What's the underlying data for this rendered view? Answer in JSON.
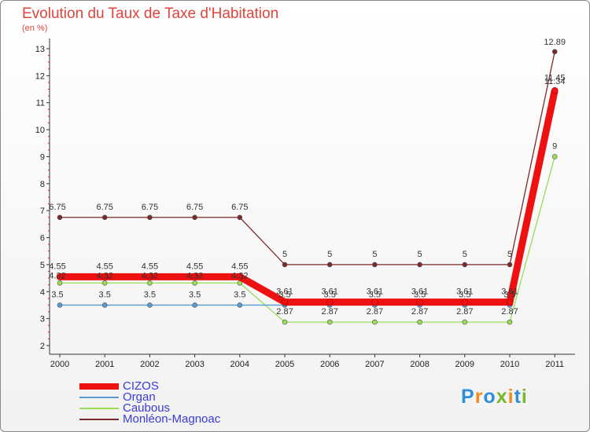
{
  "chart_data": {
    "type": "line",
    "title": "Evolution du Taux de Taxe d'Habitation",
    "subtitle": "(en %)",
    "categories": [
      "2000",
      "2001",
      "2002",
      "2003",
      "2004",
      "2005",
      "2006",
      "2007",
      "2008",
      "2009",
      "2010",
      "2011"
    ],
    "ylim": [
      2,
      13
    ],
    "y_ticks": [
      "2",
      "3",
      "4",
      "5",
      "6",
      "7",
      "8",
      "9",
      "10",
      "11",
      "12",
      "13"
    ],
    "grid": false,
    "legend_position": "bottom-left",
    "series": [
      {
        "name": "CIZOS",
        "color": "#ee1111",
        "values": [
          4.55,
          4.55,
          4.55,
          4.55,
          4.55,
          3.61,
          3.61,
          3.61,
          3.61,
          3.61,
          3.61,
          11.45
        ],
        "labels": [
          "4.55",
          "4.55",
          "4.55",
          "4.55",
          "4.55",
          "3.61",
          "3.61",
          "3.61",
          "3.61",
          "3.61",
          "3.61",
          "11.45"
        ]
      },
      {
        "name": "Organ",
        "color": "#5a9ad2",
        "values": [
          3.5,
          3.5,
          3.5,
          3.5,
          3.5,
          3.5,
          3.5,
          3.5,
          3.5,
          3.5,
          3.5,
          11.34
        ],
        "labels": [
          "3.5",
          "3.5",
          "3.5",
          "3.5",
          "3.5",
          "3.5",
          "3.5",
          "3.5",
          "3.5",
          "3.5",
          "3.5",
          "11.34"
        ]
      },
      {
        "name": "Caubous",
        "color": "#99dd55",
        "values": [
          4.32,
          4.32,
          4.32,
          4.32,
          4.32,
          2.87,
          2.87,
          2.87,
          2.87,
          2.87,
          2.87,
          9
        ],
        "labels": [
          "4.32",
          "4.32",
          "4.32",
          "4.32",
          "4.32",
          "2.87",
          "2.87",
          "2.87",
          "2.87",
          "2.87",
          "2.87",
          "9"
        ]
      },
      {
        "name": "Monléon-Magnoac",
        "color": "#7a2a2a",
        "values": [
          6.75,
          6.75,
          6.75,
          6.75,
          6.75,
          5,
          5,
          5,
          5,
          5,
          5,
          12.89
        ],
        "labels": [
          "6.75",
          "6.75",
          "6.75",
          "6.75",
          "6.75",
          "5",
          "5",
          "5",
          "5",
          "5",
          "5",
          "12.89"
        ]
      }
    ]
  },
  "logo": {
    "text": "Proxiti",
    "colors": [
      "#2f8fd6",
      "#f28a1e",
      "#2f8fd6",
      "#78b829",
      "#f28a1e",
      "#2f8fd6",
      "#78b829"
    ]
  }
}
